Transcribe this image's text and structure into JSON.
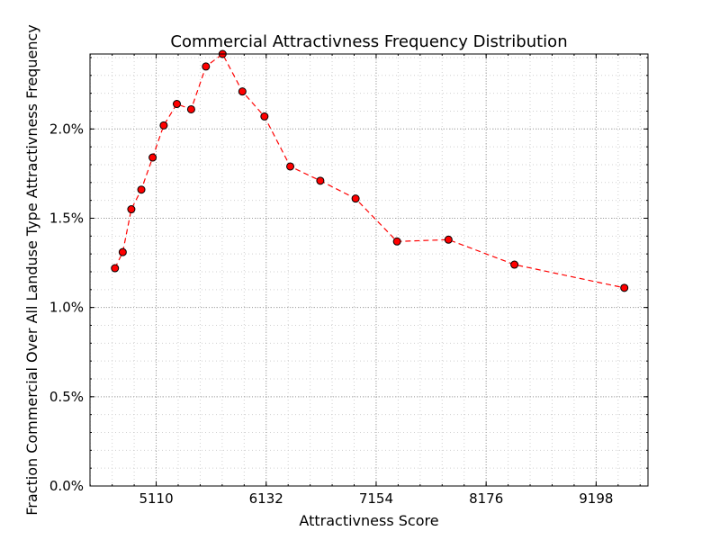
{
  "chart_data": {
    "type": "line",
    "title": "Commercial Attractivness Frequency Distribution",
    "xlabel": "Attractivness Score",
    "ylabel": "Fraction Commercial Over All Landuse Type Attractivness Frequency",
    "xlim": [
      4495,
      9680
    ],
    "ylim": [
      0.0,
      2.42
    ],
    "x_ticks": [
      5110,
      6132,
      7154,
      8176,
      9198
    ],
    "x_tick_labels": [
      "5110",
      "6132",
      "7154",
      "8176",
      "9198"
    ],
    "y_ticks": [
      0.0,
      0.5,
      1.0,
      1.5,
      2.0
    ],
    "y_tick_labels": [
      "0.0%",
      "0.5%",
      "1.0%",
      "1.5%",
      "2.0%"
    ],
    "grid": true,
    "series": [
      {
        "color": "#ff0000",
        "marker_color": "#ff0000",
        "line_style": "dashed",
        "x": [
          4727,
          4799,
          4879,
          4972,
          5077,
          5180,
          5302,
          5435,
          5572,
          5727,
          5911,
          6116,
          6356,
          6635,
          6963,
          7348,
          7826,
          8439,
          9460
        ],
        "y": [
          1.22,
          1.31,
          1.55,
          1.66,
          1.84,
          2.02,
          2.14,
          2.11,
          2.35,
          2.42,
          2.21,
          2.07,
          1.79,
          1.71,
          1.61,
          1.37,
          1.38,
          1.24,
          1.11
        ]
      }
    ]
  }
}
